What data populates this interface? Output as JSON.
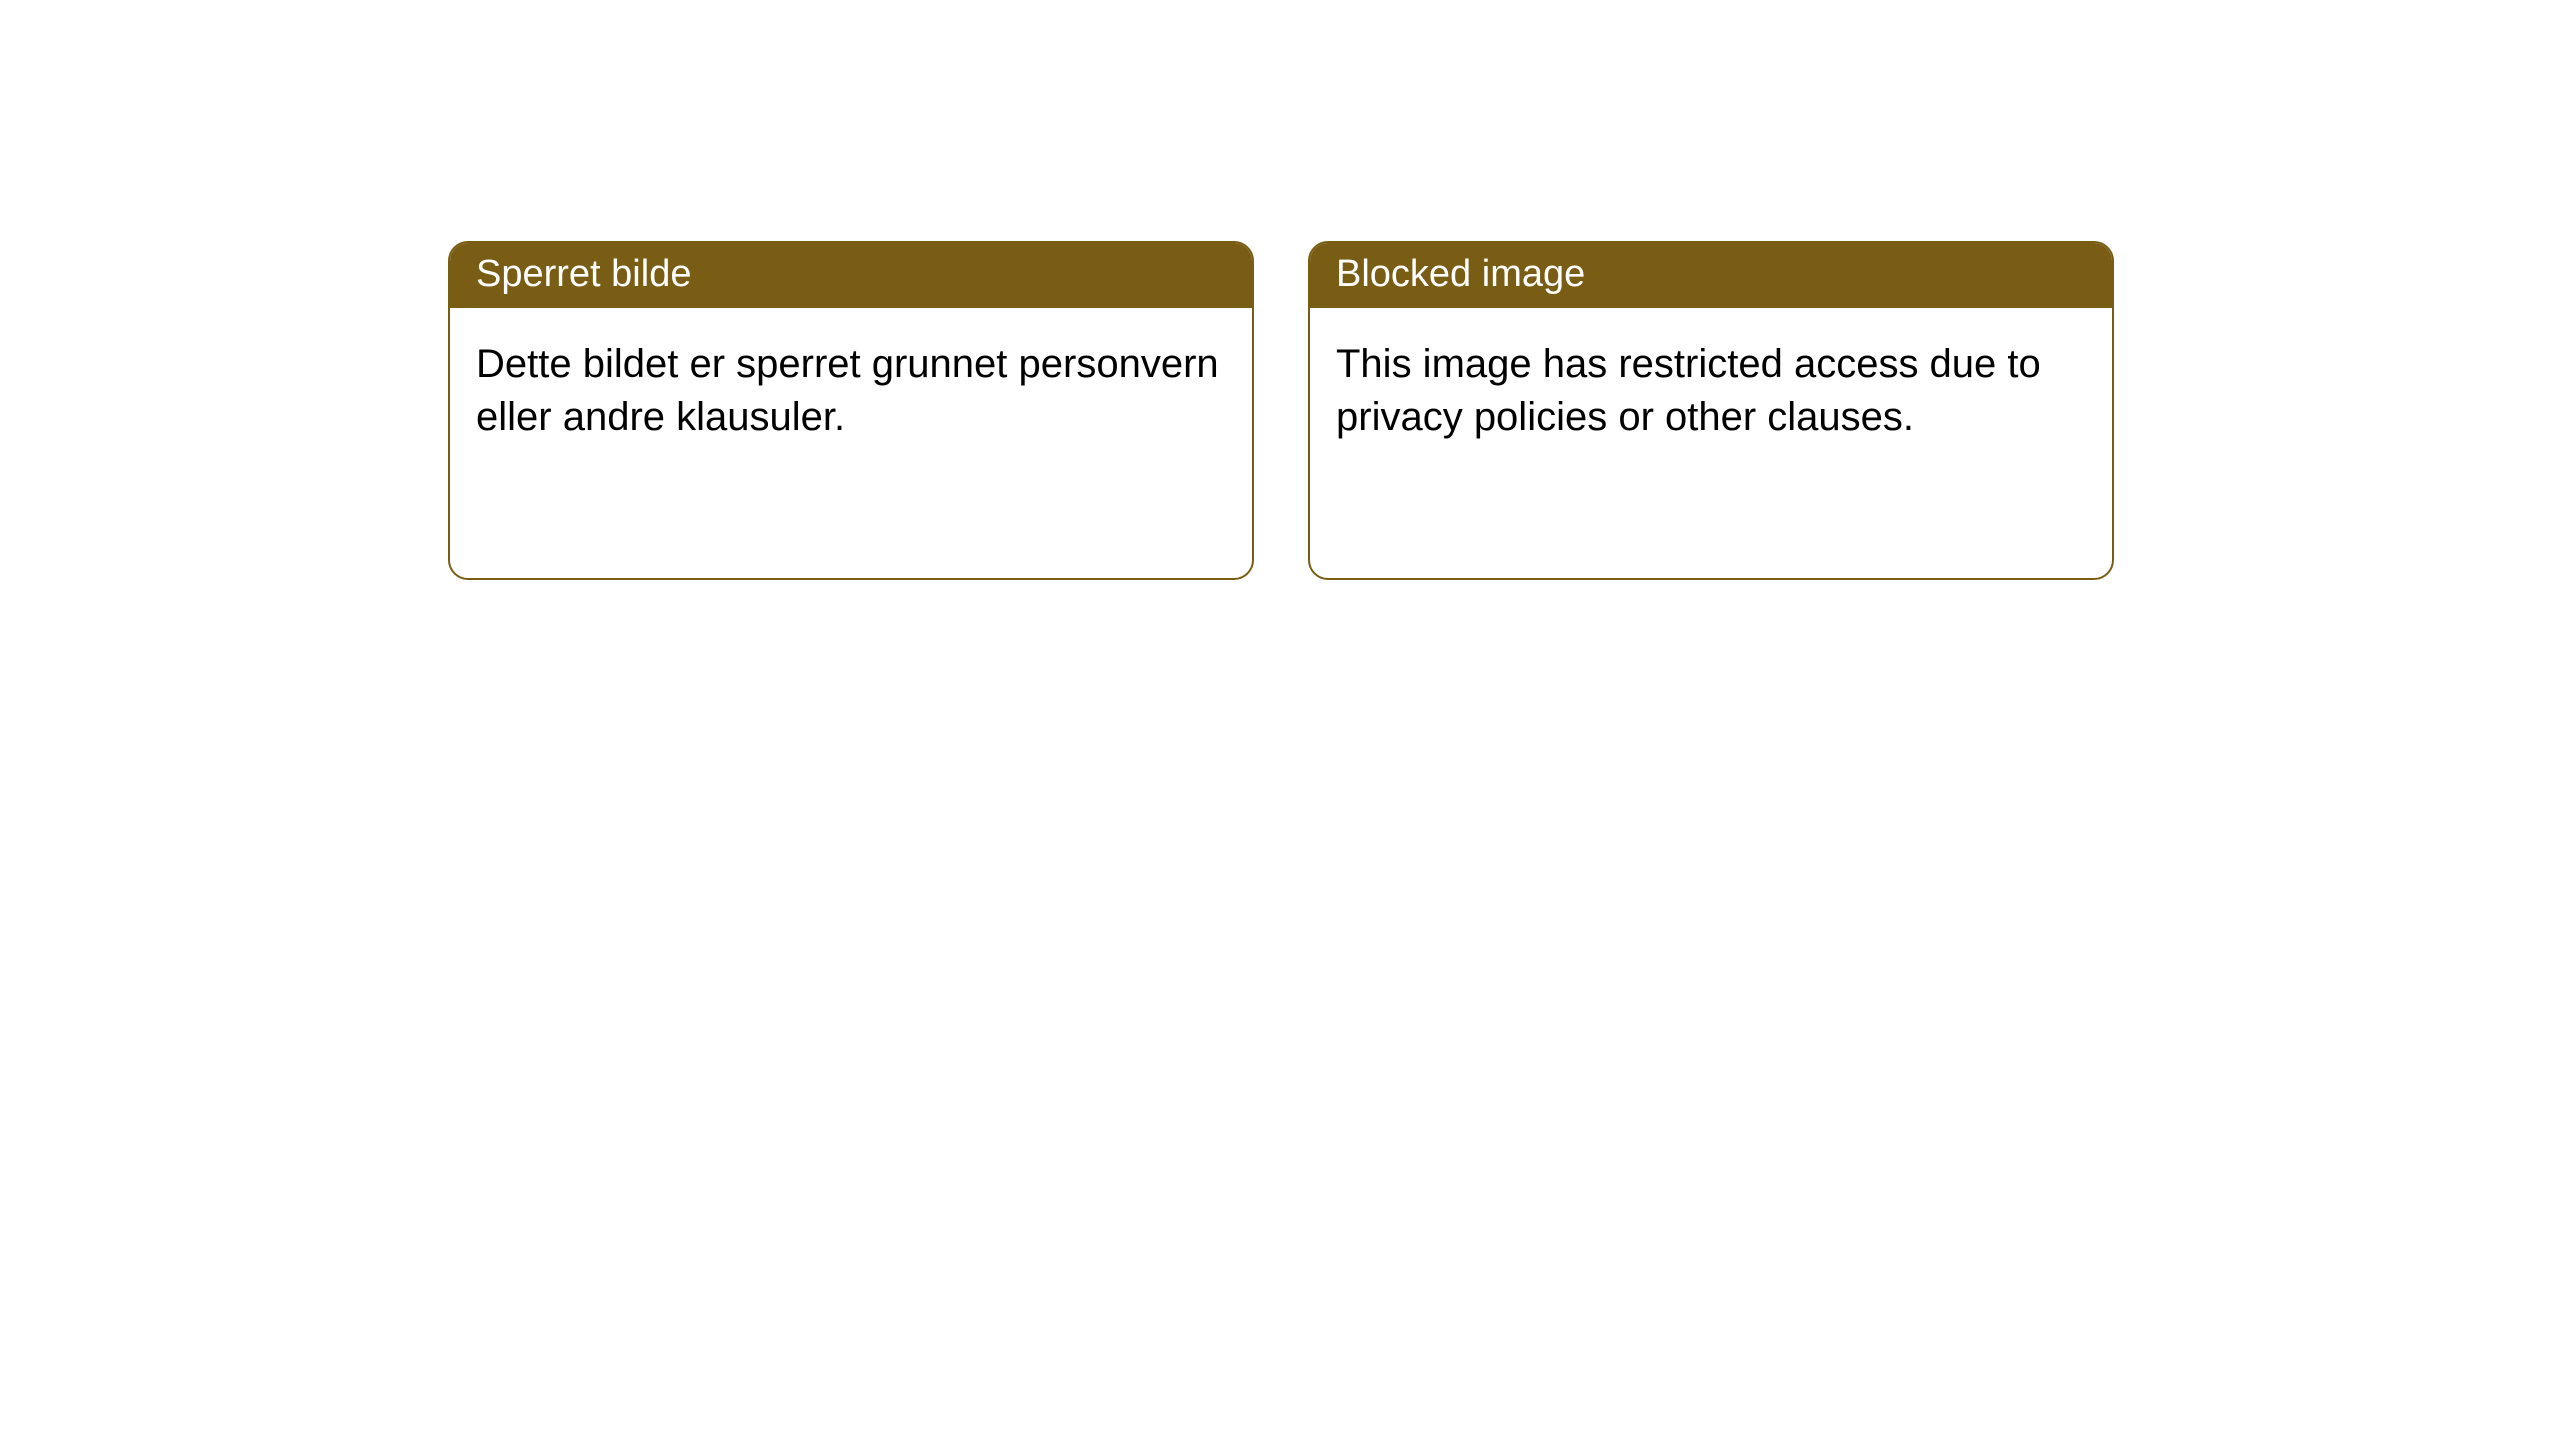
{
  "notices": [
    {
      "title": "Sperret bilde",
      "message": "Dette bildet er sperret grunnet personvern eller andre klausuler."
    },
    {
      "title": "Blocked image",
      "message": "This image has restricted access due to privacy policies or other clauses."
    }
  ],
  "style": {
    "header_bg": "#7a5d14",
    "header_text_color": "#ffffff",
    "border_color": "#7a5d14",
    "body_bg": "#ffffff",
    "body_text_color": "#000000",
    "border_radius": 20,
    "title_fontsize": 38,
    "body_fontsize": 40
  }
}
